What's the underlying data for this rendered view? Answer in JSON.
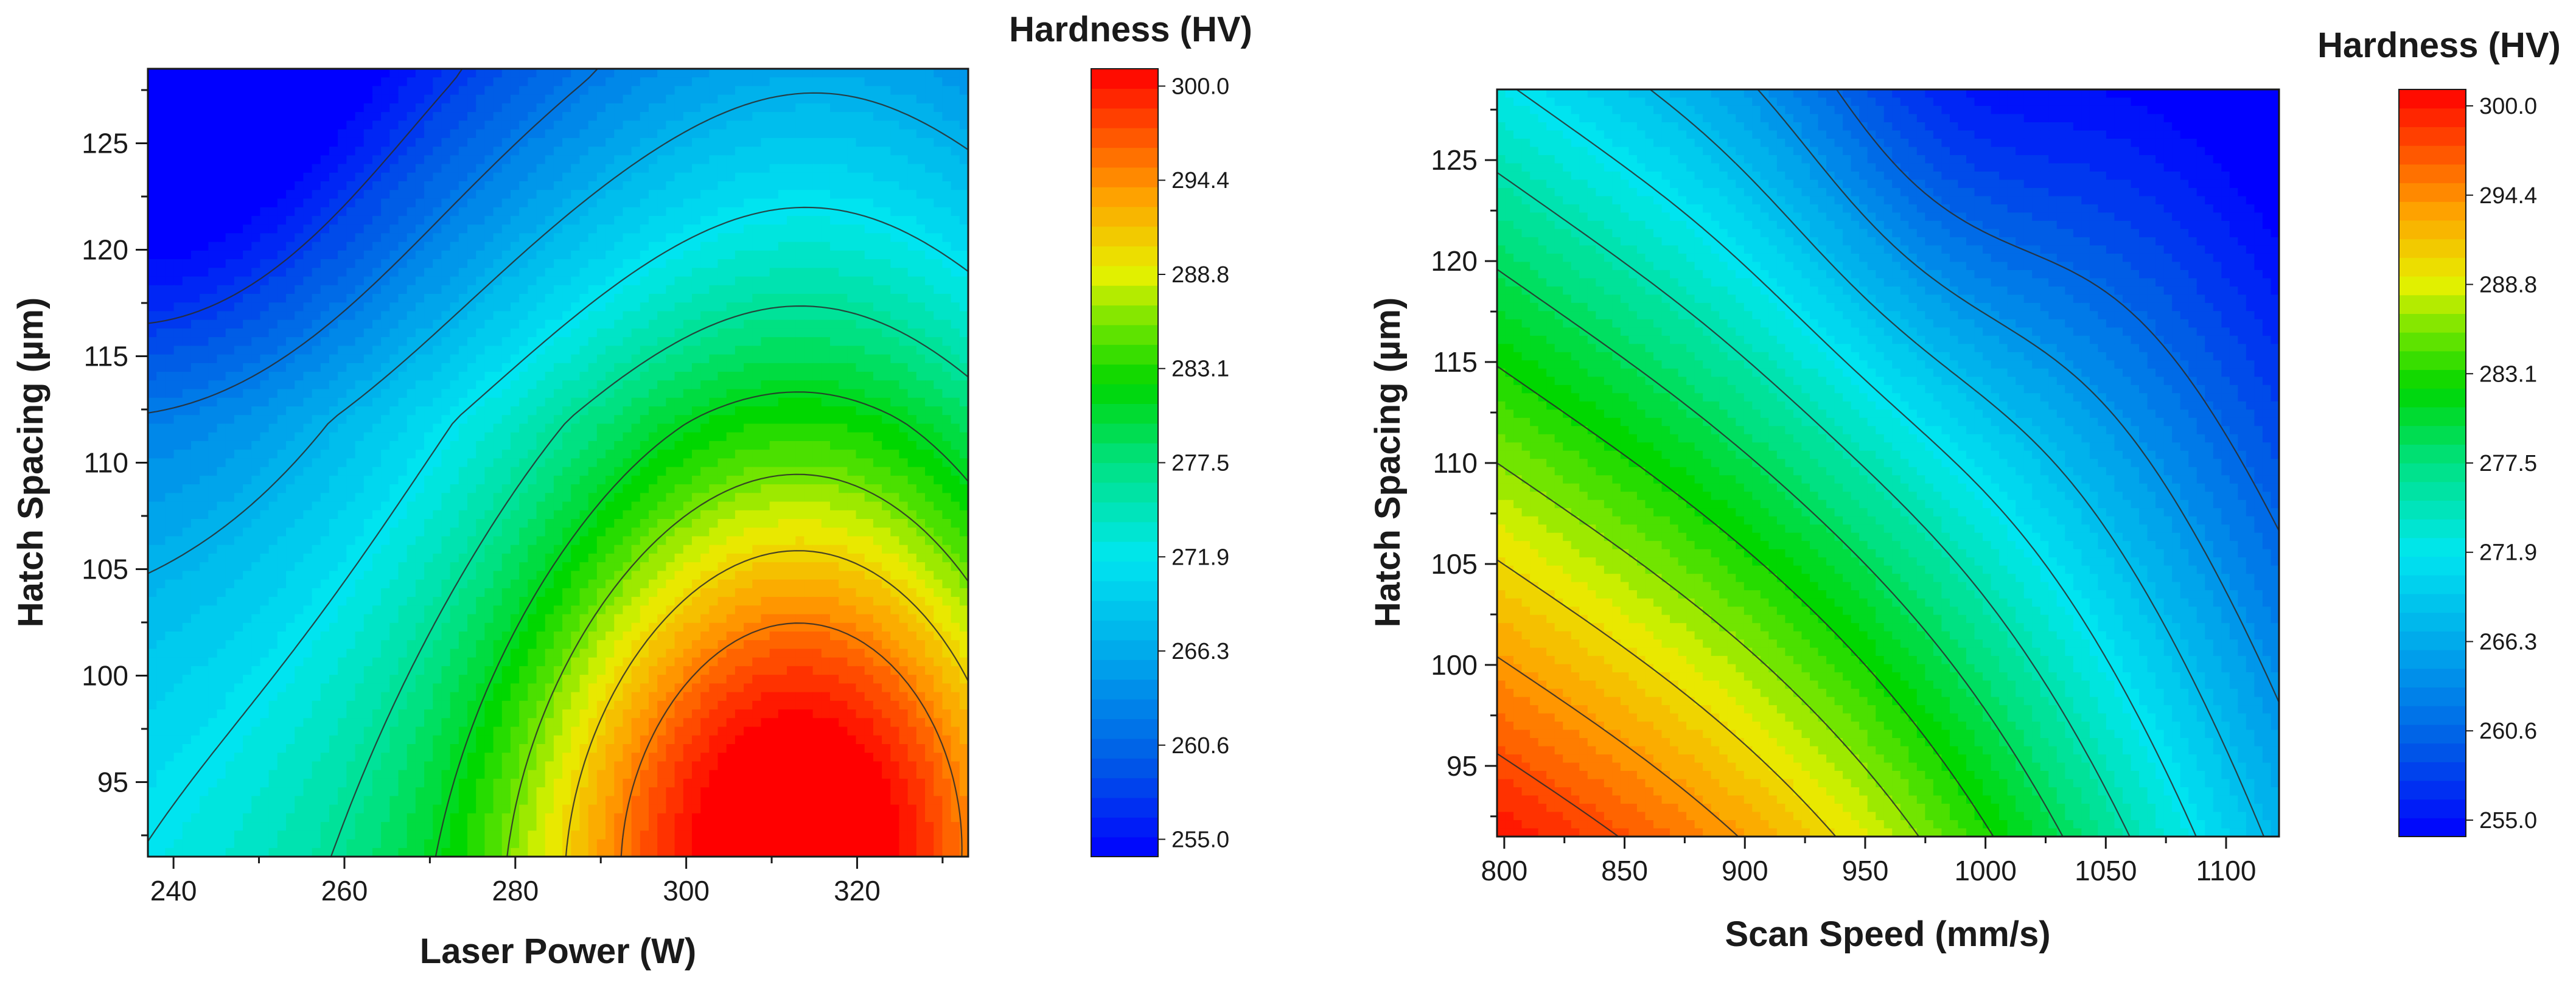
{
  "chart_data": [
    {
      "type": "heatmap",
      "title": "",
      "xlabel": "Laser Power (W)",
      "ylabel": "Hatch Spacing (µm)",
      "xlim": [
        237,
        333
      ],
      "ylim": [
        91.5,
        128.5
      ],
      "xticks": [
        240,
        260,
        280,
        300,
        320
      ],
      "yticks": [
        95,
        100,
        105,
        110,
        115,
        120,
        125
      ],
      "zlabel": "Hardness (HV)",
      "zlim": [
        255.0,
        300.0
      ],
      "colorbar_ticks": [
        "255.0",
        "260.6",
        "266.3",
        "271.9",
        "277.5",
        "283.1",
        "288.8",
        "294.4",
        "300.0"
      ],
      "contour_levels": [
        259.0,
        263.5,
        268.0,
        272.5,
        277.0,
        281.5,
        286.0,
        290.5,
        295.0
      ],
      "grid": false,
      "description_points": [
        {
          "x": 240,
          "y": 125,
          "z": 256
        },
        {
          "x": 315,
          "y": 93,
          "z": 296
        },
        {
          "x": 315,
          "y": 110,
          "z": 282
        },
        {
          "x": 250,
          "y": 95,
          "z": 270
        }
      ]
    },
    {
      "type": "heatmap",
      "title": "",
      "xlabel": "Scan Speed (mm/s)",
      "ylabel": "Hatch Spacing (µm)",
      "xlim": [
        797,
        1122
      ],
      "ylim": [
        91.5,
        128.5
      ],
      "xticks": [
        800,
        850,
        900,
        950,
        1000,
        1050,
        1100
      ],
      "yticks": [
        95,
        100,
        105,
        110,
        115,
        120,
        125
      ],
      "zlabel": "Hardness (HV)",
      "zlim": [
        255.0,
        300.0
      ],
      "colorbar_ticks": [
        "255.0",
        "260.6",
        "266.3",
        "271.9",
        "277.5",
        "283.1",
        "288.8",
        "294.4",
        "300.0"
      ],
      "contour_levels": [
        262.0,
        265.5,
        269.0,
        272.5,
        276.0,
        279.5,
        283.0,
        286.5,
        290.0,
        293.5,
        297.0
      ],
      "grid": false,
      "description_points": [
        {
          "x": 800,
          "y": 92,
          "z": 300
        },
        {
          "x": 950,
          "y": 128,
          "z": 262
        },
        {
          "x": 1100,
          "y": 95,
          "z": 274
        },
        {
          "x": 850,
          "y": 115,
          "z": 280
        }
      ]
    }
  ]
}
